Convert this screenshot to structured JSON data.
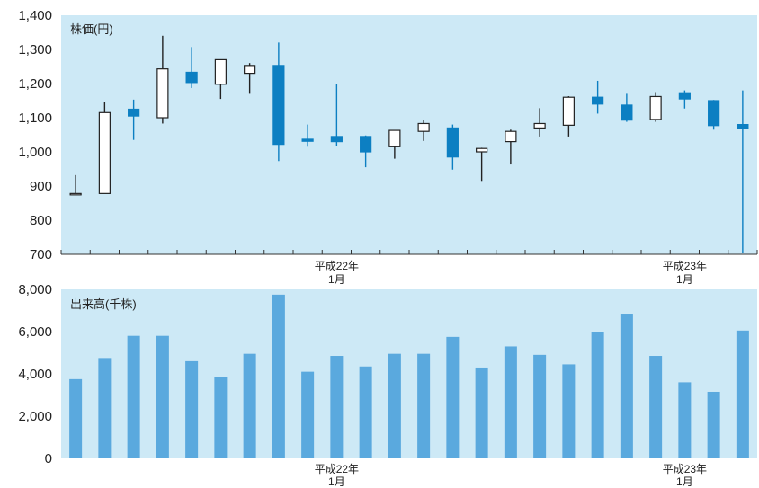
{
  "colors": {
    "plot_background": "#cde9f6",
    "candle_up": "#ffffff",
    "candle_down": "#0c7fc2",
    "wick": "#222222",
    "volume_bar": "#5aa9de",
    "axis": "#333333"
  },
  "chart_data": [
    {
      "type": "candlestick",
      "title": "株価(円)",
      "y_ticks": [
        "1,400",
        "1,300",
        "1,200",
        "1,100",
        "1,000",
        "900",
        "800",
        "700"
      ],
      "ylim": [
        700,
        1400
      ],
      "x_labels": [
        {
          "period_index": 9,
          "line1": "平成22年",
          "line2": "1月"
        },
        {
          "period_index": 21,
          "line1": "平成23年",
          "line2": "1月"
        }
      ],
      "grid": false,
      "series": [
        {
          "open": 878,
          "high": 932,
          "low": 876,
          "close": 878
        },
        {
          "open": 878,
          "high": 1145,
          "low": 878,
          "close": 1115
        },
        {
          "open": 1125,
          "high": 1153,
          "low": 1035,
          "close": 1105
        },
        {
          "open": 1100,
          "high": 1340,
          "low": 1083,
          "close": 1243
        },
        {
          "open": 1233,
          "high": 1307,
          "low": 1187,
          "close": 1203
        },
        {
          "open": 1198,
          "high": 1270,
          "low": 1155,
          "close": 1270
        },
        {
          "open": 1230,
          "high": 1260,
          "low": 1170,
          "close": 1253
        },
        {
          "open": 1253,
          "high": 1320,
          "low": 973,
          "close": 1022
        },
        {
          "open": 1037,
          "high": 1080,
          "low": 1015,
          "close": 1031
        },
        {
          "open": 1045,
          "high": 1200,
          "low": 1018,
          "close": 1030
        },
        {
          "open": 1045,
          "high": 1048,
          "low": 955,
          "close": 1000
        },
        {
          "open": 1015,
          "high": 1063,
          "low": 980,
          "close": 1063
        },
        {
          "open": 1060,
          "high": 1092,
          "low": 1032,
          "close": 1083
        },
        {
          "open": 1070,
          "high": 1080,
          "low": 948,
          "close": 985
        },
        {
          "open": 1000,
          "high": 1012,
          "low": 915,
          "close": 1010
        },
        {
          "open": 1030,
          "high": 1065,
          "low": 963,
          "close": 1060
        },
        {
          "open": 1070,
          "high": 1128,
          "low": 1045,
          "close": 1083
        },
        {
          "open": 1078,
          "high": 1163,
          "low": 1045,
          "close": 1160
        },
        {
          "open": 1160,
          "high": 1208,
          "low": 1112,
          "close": 1140
        },
        {
          "open": 1137,
          "high": 1170,
          "low": 1088,
          "close": 1093
        },
        {
          "open": 1095,
          "high": 1175,
          "low": 1088,
          "close": 1162
        },
        {
          "open": 1173,
          "high": 1180,
          "low": 1127,
          "close": 1155
        },
        {
          "open": 1150,
          "high": 1152,
          "low": 1065,
          "close": 1077
        },
        {
          "open": 1080,
          "high": 1180,
          "low": 705,
          "close": 1068
        }
      ]
    },
    {
      "type": "bar",
      "title": "出来高(千株)",
      "y_ticks": [
        "8,000",
        "6,000",
        "4,000",
        "2,000",
        "0"
      ],
      "ylim": [
        0,
        8000
      ],
      "x_labels": [
        {
          "period_index": 9,
          "line1": "平成22年",
          "line2": "1月"
        },
        {
          "period_index": 21,
          "line1": "平成23年",
          "line2": "1月"
        }
      ],
      "grid": false,
      "values": [
        3750,
        4750,
        5800,
        5800,
        4600,
        3850,
        4950,
        7750,
        4100,
        4850,
        4350,
        4950,
        4950,
        5750,
        4300,
        5300,
        4900,
        4450,
        6000,
        6850,
        4850,
        3600,
        3150,
        6050
      ]
    }
  ]
}
